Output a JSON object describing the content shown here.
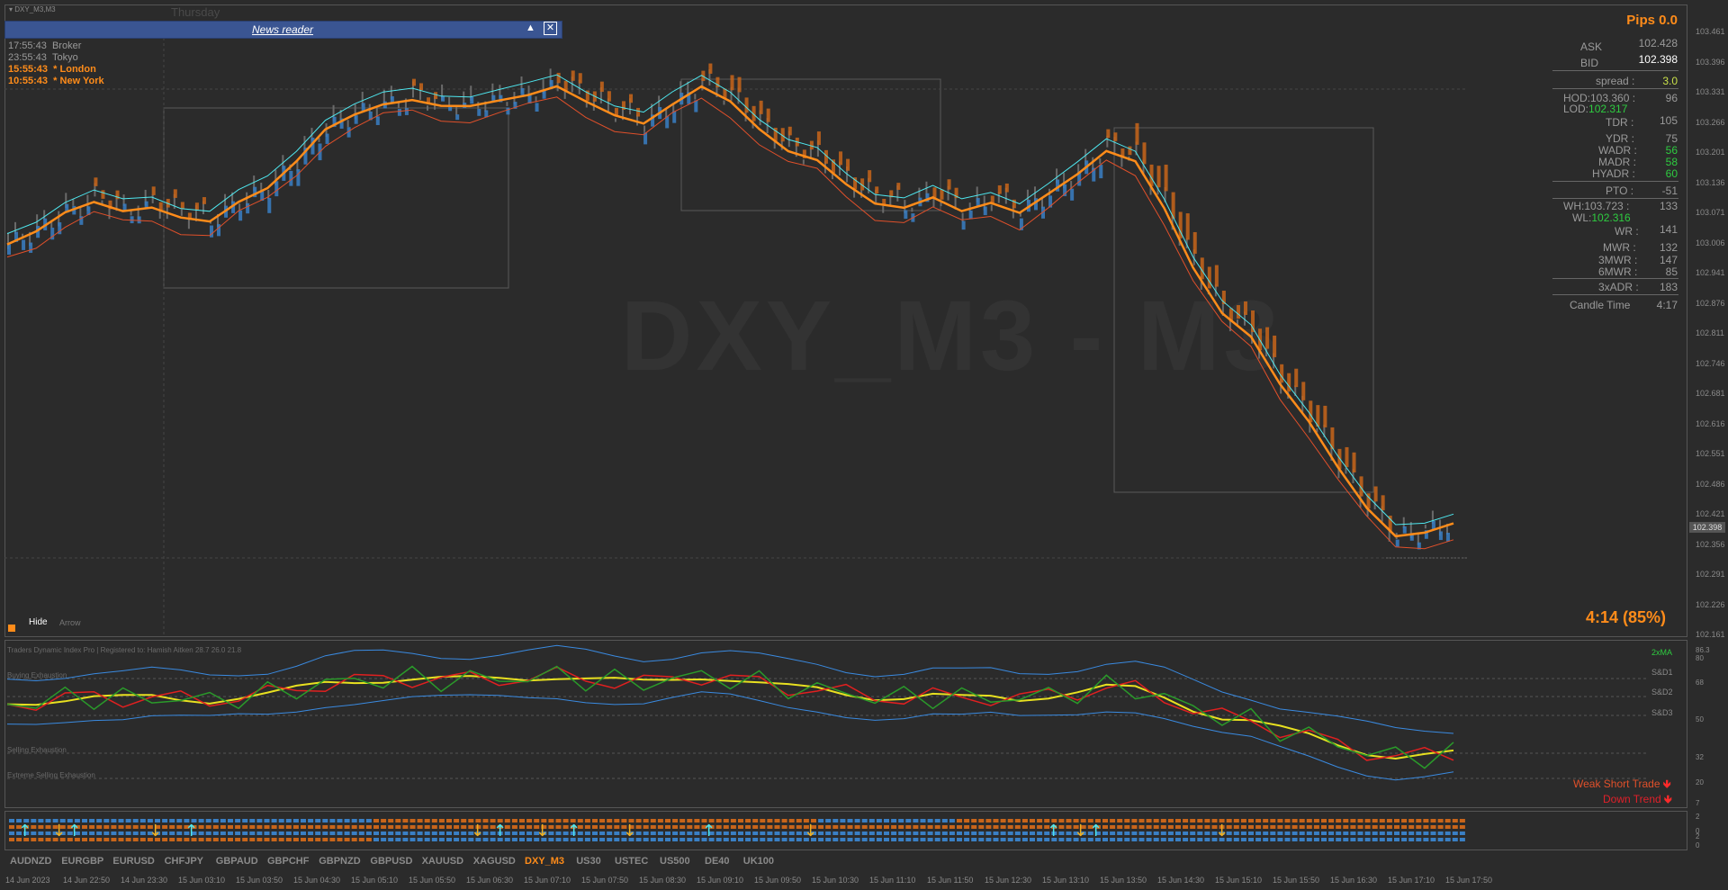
{
  "chart_title": "DXY_M3,M3",
  "day_label": "Thursday",
  "watermark": "DXY_M3 - M3",
  "news_reader": {
    "title": "News reader",
    "sort_icon": "triangle-up-icon",
    "close_icon": "close-icon"
  },
  "sessions": [
    {
      "time": "17:55:43",
      "name": "Broker",
      "color": "#9a9a9a"
    },
    {
      "time": "23:55:43",
      "name": "Tokyo",
      "color": "#9a9a9a"
    },
    {
      "time": "15:55:43",
      "name": "* London",
      "color": "#ff8c1a"
    },
    {
      "time": "10:55:43",
      "name": "* New York",
      "color": "#ff8c1a"
    }
  ],
  "hide_label": "Hide",
  "arrow_label": "Arrow",
  "stats": {
    "pips": "Pips 0.0",
    "ask_label": "ASK",
    "ask_value": "102.428",
    "bid_label": "BID",
    "bid_value": "102.398",
    "spread_label": "spread :",
    "spread_value": "3.0",
    "hod_label": "HOD:103.360 :",
    "hod_value": "96",
    "lod_label": "LOD:",
    "lod_price": "102.317",
    "tdr_label": "TDR :",
    "tdr_value": "105",
    "ydr_label": "YDR :",
    "ydr_value": "75",
    "wadr_label": "WADR :",
    "wadr_value": "56",
    "madr_label": "MADR :",
    "madr_value": "58",
    "hyadr_label": "HYADR :",
    "hyadr_value": "60",
    "pto_label": "PTO :",
    "pto_value": "-51",
    "wh_label": "WH:103.723 :",
    "wh_value": "133",
    "wl_label": "WL:",
    "wl_price": "102.316",
    "wr_label": "WR :",
    "wr_value": "141",
    "mwr_label": "MWR :",
    "mwr_value": "132",
    "mwr3_label": "3MWR :",
    "mwr3_value": "147",
    "mwr6_label": "6MWR :",
    "mwr6_value": "85",
    "adr3_label": "3xADR :",
    "adr3_value": "183",
    "candle_label": "Candle Time",
    "candle_value": "4:17"
  },
  "countdown": "4:14 (85%)",
  "price_axis": [
    "103.461",
    "103.396",
    "103.331",
    "103.266",
    "103.201",
    "103.136",
    "103.071",
    "103.006",
    "102.941",
    "102.876",
    "102.811",
    "102.746",
    "102.681",
    "102.616",
    "102.551",
    "102.486",
    "102.421",
    "102.356",
    "102.291",
    "102.226",
    "102.161"
  ],
  "current_price_tag": "102.398",
  "indicator": {
    "title": "Traders Dynamic Index Pro | Registered to: Hamish Aitken 28.7 26.0 21.8",
    "level_labels": [
      "Buying Exhaustion",
      "Selling Exhaustion",
      "Extreme Selling Exhaustion"
    ],
    "right_labels": {
      "ma": "2xMA",
      "sd1": "S&D1",
      "sd2": "S&D2",
      "sd3": "S&D3"
    },
    "axis": [
      "86.3",
      "80",
      "68",
      "50",
      "32",
      "20",
      "7"
    ],
    "signal1": "Weak Short Trade",
    "signal2": "Down Trend"
  },
  "arrow_axis": [
    "2",
    "0",
    "2",
    "0"
  ],
  "symbol_tabs": [
    "AUDNZD",
    "EURGBP",
    "EURUSD",
    "CHFJPY",
    "GBPAUD",
    "GBPCHF",
    "GBPNZD",
    "GBPUSD",
    "XAUUSD",
    "XAGUSD",
    "DXY_M3",
    "US30",
    "USTEC",
    "US500",
    "DE40",
    "UK100"
  ],
  "active_symbol": "DXY_M3",
  "time_axis": [
    "14 Jun 2023",
    "14 Jun 22:50",
    "14 Jun 23:30",
    "15 Jun 03:10",
    "15 Jun 03:50",
    "15 Jun 04:30",
    "15 Jun 05:10",
    "15 Jun 05:50",
    "15 Jun 06:30",
    "15 Jun 07:10",
    "15 Jun 07:50",
    "15 Jun 08:30",
    "15 Jun 09:10",
    "15 Jun 09:50",
    "15 Jun 10:30",
    "15 Jun 11:10",
    "15 Jun 11:50",
    "15 Jun 12:30",
    "15 Jun 13:10",
    "15 Jun 13:50",
    "15 Jun 14:30",
    "15 Jun 15:10",
    "15 Jun 15:50",
    "15 Jun 16:30",
    "15 Jun 17:10",
    "15 Jun 17:50"
  ],
  "colors": {
    "bull": "#3a7fc4",
    "bear": "#c8651a",
    "orange": "#ff8c1a",
    "cyan": "#4ee8f0",
    "red_line": "#e0502a",
    "green": "#2ecc40"
  },
  "price_series": [
    103.0,
    103.03,
    103.07,
    103.09,
    103.07,
    103.08,
    103.06,
    103.05,
    103.09,
    103.12,
    103.18,
    103.25,
    103.28,
    103.3,
    103.31,
    103.3,
    103.3,
    103.31,
    103.32,
    103.34,
    103.31,
    103.28,
    103.26,
    103.3,
    103.34,
    103.31,
    103.25,
    103.2,
    103.18,
    103.13,
    103.09,
    103.08,
    103.1,
    103.07,
    103.09,
    103.07,
    103.11,
    103.15,
    103.2,
    103.18,
    103.08,
    102.95,
    102.85,
    102.8,
    102.7,
    102.62,
    102.52,
    102.43,
    102.37,
    102.38,
    102.4
  ]
}
